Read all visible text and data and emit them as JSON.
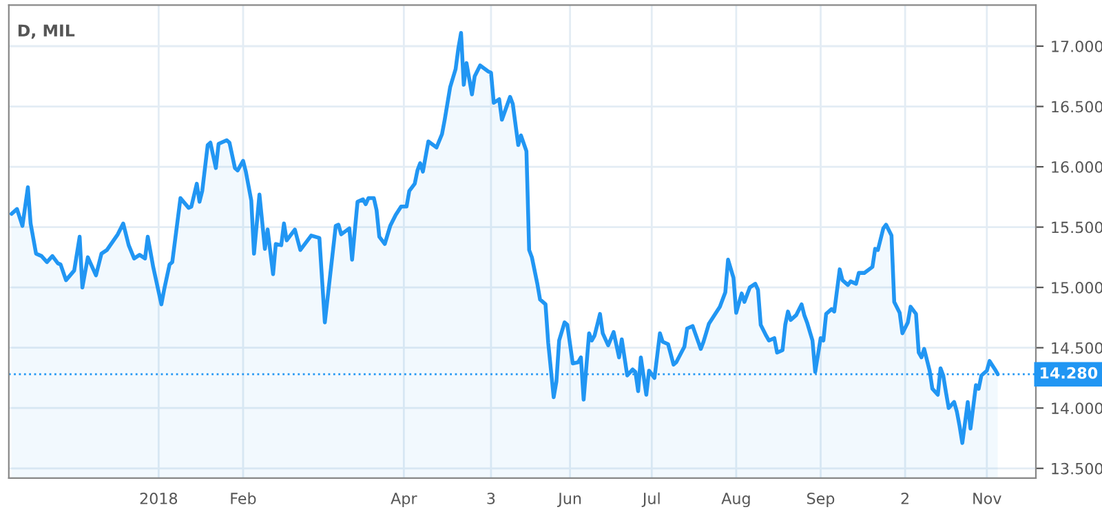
{
  "chart_data": {
    "type": "area",
    "title": "D, MIL",
    "x": [
      "2017-11-08",
      "2017-11-10",
      "2017-11-12",
      "2017-11-14",
      "2017-11-15",
      "2017-11-17",
      "2017-11-19",
      "2017-11-21",
      "2017-11-23",
      "2017-11-25",
      "2017-11-26",
      "2017-11-28",
      "2017-12-01",
      "2017-12-03",
      "2017-12-04",
      "2017-12-06",
      "2017-12-09",
      "2017-12-11",
      "2017-12-13",
      "2017-12-17",
      "2017-12-19",
      "2017-12-21",
      "2017-12-23",
      "2017-12-25",
      "2017-12-27",
      "2017-12-28",
      "2017-12-30",
      "2018-01-02",
      "2018-01-03",
      "2018-01-05",
      "2018-01-06",
      "2018-01-09",
      "2018-01-12",
      "2018-01-13",
      "2018-01-15",
      "2018-01-16",
      "2018-01-17",
      "2018-01-19",
      "2018-01-20",
      "2018-01-22",
      "2018-01-23",
      "2018-01-26",
      "2018-01-27",
      "2018-01-29",
      "2018-01-30",
      "2018-02-01",
      "2018-02-02",
      "2018-02-04",
      "2018-02-05",
      "2018-02-07",
      "2018-02-09",
      "2018-02-10",
      "2018-02-12",
      "2018-02-13",
      "2018-02-15",
      "2018-02-16",
      "2018-02-17",
      "2018-02-20",
      "2018-02-22",
      "2018-02-26",
      "2018-03-01",
      "2018-03-03",
      "2018-03-07",
      "2018-03-08",
      "2018-03-09",
      "2018-03-12",
      "2018-03-13",
      "2018-03-15",
      "2018-03-17",
      "2018-03-18",
      "2018-03-19",
      "2018-03-21",
      "2018-03-22",
      "2018-03-23",
      "2018-03-25",
      "2018-03-27",
      "2018-03-29",
      "2018-03-31",
      "2018-04-02",
      "2018-04-03",
      "2018-04-05",
      "2018-04-06",
      "2018-04-07",
      "2018-04-08",
      "2018-04-10",
      "2018-04-13",
      "2018-04-15",
      "2018-04-16",
      "2018-04-18",
      "2018-04-20",
      "2018-04-21",
      "2018-04-22",
      "2018-04-23",
      "2018-04-24",
      "2018-04-26",
      "2018-04-27",
      "2018-04-29",
      "2018-05-02",
      "2018-05-03",
      "2018-05-04",
      "2018-05-06",
      "2018-05-07",
      "2018-05-10",
      "2018-05-11",
      "2018-05-13",
      "2018-05-14",
      "2018-05-16",
      "2018-05-17",
      "2018-05-18",
      "2018-05-20",
      "2018-05-21",
      "2018-05-23",
      "2018-05-24",
      "2018-05-26",
      "2018-05-27",
      "2018-05-28",
      "2018-05-30",
      "2018-05-31",
      "2018-06-02",
      "2018-06-04",
      "2018-06-05",
      "2018-06-06",
      "2018-06-08",
      "2018-06-09",
      "2018-06-10",
      "2018-06-12",
      "2018-06-13",
      "2018-06-15",
      "2018-06-17",
      "2018-06-19",
      "2018-06-20",
      "2018-06-22",
      "2018-06-24",
      "2018-06-25",
      "2018-06-26",
      "2018-06-27",
      "2018-06-29",
      "2018-06-30",
      "2018-07-02",
      "2018-07-04",
      "2018-07-05",
      "2018-07-07",
      "2018-07-09",
      "2018-07-10",
      "2018-07-13",
      "2018-07-14",
      "2018-07-16",
      "2018-07-19",
      "2018-07-20",
      "2018-07-22",
      "2018-07-24",
      "2018-07-26",
      "2018-07-28",
      "2018-07-29",
      "2018-07-31",
      "2018-08-01",
      "2018-08-03",
      "2018-08-04",
      "2018-08-06",
      "2018-08-08",
      "2018-08-09",
      "2018-08-10",
      "2018-08-12",
      "2018-08-13",
      "2018-08-15",
      "2018-08-16",
      "2018-08-18",
      "2018-08-19",
      "2018-08-20",
      "2018-08-21",
      "2018-08-23",
      "2018-08-25",
      "2018-08-26",
      "2018-08-27",
      "2018-08-29",
      "2018-08-30",
      "2018-09-01",
      "2018-09-02",
      "2018-09-03",
      "2018-09-05",
      "2018-09-06",
      "2018-09-08",
      "2018-09-09",
      "2018-09-11",
      "2018-09-12",
      "2018-09-14",
      "2018-09-15",
      "2018-09-17",
      "2018-09-20",
      "2018-09-21",
      "2018-09-22",
      "2018-09-24",
      "2018-09-25",
      "2018-09-27",
      "2018-09-28",
      "2018-09-30",
      "2018-10-01",
      "2018-10-03",
      "2018-10-04",
      "2018-10-06",
      "2018-10-07",
      "2018-10-08",
      "2018-10-09",
      "2018-10-11",
      "2018-10-12",
      "2018-10-14",
      "2018-10-15",
      "2018-10-16",
      "2018-10-17",
      "2018-10-18",
      "2018-10-20",
      "2018-10-21",
      "2018-10-22",
      "2018-10-23",
      "2018-10-25",
      "2018-10-26",
      "2018-10-28",
      "2018-10-29",
      "2018-10-30",
      "2018-11-01",
      "2018-11-02",
      "2018-11-04",
      "2018-11-05"
    ],
    "series": [
      {
        "color": "#2196f3",
        "values": [
          15.61,
          15.65,
          15.51,
          15.83,
          15.53,
          15.28,
          15.26,
          15.21,
          15.26,
          15.2,
          15.19,
          15.06,
          15.14,
          15.42,
          15.0,
          15.25,
          15.1,
          15.28,
          15.31,
          15.44,
          15.53,
          15.35,
          15.24,
          15.27,
          15.24,
          15.42,
          15.17,
          14.86,
          14.98,
          15.19,
          15.21,
          15.74,
          15.66,
          15.67,
          15.86,
          15.71,
          15.8,
          16.18,
          16.2,
          15.99,
          16.19,
          16.22,
          16.2,
          15.99,
          15.97,
          16.05,
          15.96,
          15.72,
          15.28,
          15.77,
          15.32,
          15.48,
          15.11,
          15.36,
          15.35,
          15.53,
          15.39,
          15.48,
          15.31,
          15.43,
          15.41,
          14.71,
          15.51,
          15.52,
          15.44,
          15.49,
          15.23,
          15.71,
          15.73,
          15.69,
          15.74,
          15.74,
          15.64,
          15.42,
          15.36,
          15.51,
          15.6,
          15.67,
          15.67,
          15.8,
          15.86,
          15.97,
          16.03,
          15.96,
          16.21,
          16.16,
          16.27,
          16.39,
          16.66,
          16.81,
          16.98,
          17.11,
          16.68,
          16.86,
          16.6,
          16.75,
          16.84,
          16.79,
          16.78,
          16.53,
          16.56,
          16.39,
          16.58,
          16.52,
          16.18,
          16.26,
          16.13,
          15.31,
          15.25,
          15.03,
          14.9,
          14.86,
          14.54,
          14.09,
          14.22,
          14.56,
          14.71,
          14.69,
          14.37,
          14.38,
          14.42,
          14.07,
          14.62,
          14.56,
          14.6,
          14.78,
          14.62,
          14.52,
          14.63,
          14.42,
          14.57,
          14.27,
          14.32,
          14.3,
          14.14,
          14.42,
          14.11,
          14.31,
          14.25,
          14.62,
          14.55,
          14.53,
          14.36,
          14.38,
          14.51,
          14.66,
          14.68,
          14.49,
          14.55,
          14.7,
          14.77,
          14.84,
          14.96,
          15.23,
          15.08,
          14.79,
          14.95,
          14.88,
          15.0,
          15.03,
          14.98,
          14.69,
          14.6,
          14.56,
          14.58,
          14.46,
          14.48,
          14.69,
          14.8,
          14.73,
          14.77,
          14.86,
          14.77,
          14.71,
          14.56,
          14.3,
          14.58,
          14.56,
          14.78,
          14.82,
          14.8,
          15.15,
          15.06,
          15.02,
          15.05,
          15.03,
          15.12,
          15.12,
          15.17,
          15.32,
          15.31,
          15.49,
          15.52,
          15.43,
          14.88,
          14.79,
          14.62,
          14.71,
          14.84,
          14.78,
          14.46,
          14.42,
          14.49,
          14.31,
          14.16,
          14.11,
          14.33,
          14.27,
          14.13,
          14.0,
          14.05,
          13.97,
          13.85,
          13.71,
          14.05,
          13.83,
          14.19,
          14.16,
          14.27,
          14.31,
          14.39,
          14.32,
          14.28
        ]
      }
    ],
    "xlim": [
      "2017-11-07",
      "2018-11-19"
    ],
    "xticks": [
      {
        "value": "2018-01-01",
        "label": "2018"
      },
      {
        "value": "2018-02-01",
        "label": "Feb"
      },
      {
        "value": "2018-04-01",
        "label": "Apr"
      },
      {
        "value": "2018-05-03",
        "label": "3"
      },
      {
        "value": "2018-06-01",
        "label": "Jun"
      },
      {
        "value": "2018-07-01",
        "label": "Jul"
      },
      {
        "value": "2018-08-01",
        "label": "Aug"
      },
      {
        "value": "2018-09-01",
        "label": "Sep"
      },
      {
        "value": "2018-10-02",
        "label": "2"
      },
      {
        "value": "2018-11-01",
        "label": "Nov"
      }
    ],
    "ylim": [
      13.42,
      17.34
    ],
    "yticks": [
      {
        "value": 13.5,
        "label": "13.500"
      },
      {
        "value": 14,
        "label": "14.000"
      },
      {
        "value": 14.5,
        "label": "14.500"
      },
      {
        "value": 15,
        "label": "15.000"
      },
      {
        "value": 15.5,
        "label": "15.500"
      },
      {
        "value": 16,
        "label": "16.000"
      },
      {
        "value": 16.5,
        "label": "16.500"
      },
      {
        "value": 17,
        "label": "17.000"
      }
    ],
    "ref_lines": [
      {
        "axis": "y",
        "value": 14.28,
        "label": "14.280",
        "color": "#2196f3",
        "line_style": "dotted"
      }
    ],
    "grid": true,
    "legend": false,
    "marker": "none",
    "line_style": "solid"
  }
}
